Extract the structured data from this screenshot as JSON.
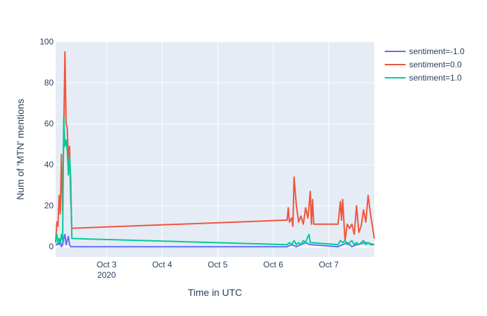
{
  "chart_data": {
    "type": "line",
    "xlabel": "Time in UTC",
    "ylabel": "Num of 'MTN' mentions",
    "x_axis": {
      "type": "date",
      "range": [
        "2020-10-02 02:00",
        "2020-10-07 19:40"
      ],
      "ticks": [
        {
          "date": "2020-10-03 00:00",
          "label": "Oct 3",
          "sublabel": "2020"
        },
        {
          "date": "2020-10-04 00:00",
          "label": "Oct 4",
          "sublabel": ""
        },
        {
          "date": "2020-10-05 00:00",
          "label": "Oct 5",
          "sublabel": ""
        },
        {
          "date": "2020-10-06 00:00",
          "label": "Oct 6",
          "sublabel": ""
        },
        {
          "date": "2020-10-07 00:00",
          "label": "Oct 7",
          "sublabel": ""
        }
      ]
    },
    "y_axis": {
      "range": [
        -5,
        100
      ],
      "ticks": [
        0,
        20,
        40,
        60,
        80,
        100
      ]
    },
    "grid": true,
    "legend_position": "top-right",
    "series": [
      {
        "name": "sentiment=-1.0",
        "color": "#636efa",
        "points": [
          [
            "2020-10-02 02:00",
            1
          ],
          [
            "2020-10-02 02:30",
            1
          ],
          [
            "2020-10-02 03:00",
            2
          ],
          [
            "2020-10-02 03:30",
            1
          ],
          [
            "2020-10-02 04:00",
            3
          ],
          [
            "2020-10-02 04:30",
            0
          ],
          [
            "2020-10-02 05:00",
            1
          ],
          [
            "2020-10-02 05:30",
            4
          ],
          [
            "2020-10-02 06:00",
            6
          ],
          [
            "2020-10-02 06:30",
            1
          ],
          [
            "2020-10-02 07:00",
            3
          ],
          [
            "2020-10-02 07:30",
            5
          ],
          [
            "2020-10-02 08:00",
            1
          ],
          [
            "2020-10-02 08:30",
            0
          ],
          [
            "2020-10-02 09:00",
            0
          ],
          [
            "2020-10-06 06:00",
            0
          ],
          [
            "2020-10-06 08:00",
            1
          ],
          [
            "2020-10-06 10:00",
            0
          ],
          [
            "2020-10-06 12:00",
            1
          ],
          [
            "2020-10-06 14:00",
            2
          ],
          [
            "2020-10-06 16:00",
            1
          ],
          [
            "2020-10-07 04:00",
            0
          ],
          [
            "2020-10-07 08:00",
            2
          ],
          [
            "2020-10-07 10:00",
            0
          ],
          [
            "2020-10-07 12:00",
            1
          ],
          [
            "2020-10-07 16:00",
            2
          ],
          [
            "2020-10-07 19:40",
            1
          ]
        ]
      },
      {
        "name": "sentiment=0.0",
        "color": "#ef553b",
        "points": [
          [
            "2020-10-02 02:00",
            2
          ],
          [
            "2020-10-02 02:30",
            12
          ],
          [
            "2020-10-02 03:00",
            10
          ],
          [
            "2020-10-02 03:30",
            25
          ],
          [
            "2020-10-02 04:00",
            16
          ],
          [
            "2020-10-02 04:30",
            45
          ],
          [
            "2020-10-02 05:00",
            18
          ],
          [
            "2020-10-02 05:30",
            55
          ],
          [
            "2020-10-02 06:00",
            95
          ],
          [
            "2020-10-02 06:30",
            60
          ],
          [
            "2020-10-02 07:00",
            58
          ],
          [
            "2020-10-02 07:30",
            42
          ],
          [
            "2020-10-02 08:00",
            49
          ],
          [
            "2020-10-02 08:30",
            24
          ],
          [
            "2020-10-02 09:00",
            9
          ],
          [
            "2020-10-06 06:00",
            13
          ],
          [
            "2020-10-06 06:30",
            19
          ],
          [
            "2020-10-06 07:00",
            12
          ],
          [
            "2020-10-06 08:00",
            14
          ],
          [
            "2020-10-06 08:30",
            10
          ],
          [
            "2020-10-06 09:00",
            34
          ],
          [
            "2020-10-06 10:00",
            20
          ],
          [
            "2020-10-06 11:00",
            12
          ],
          [
            "2020-10-06 12:00",
            15
          ],
          [
            "2020-10-06 13:00",
            11
          ],
          [
            "2020-10-06 14:00",
            19
          ],
          [
            "2020-10-06 15:00",
            14
          ],
          [
            "2020-10-06 16:00",
            27
          ],
          [
            "2020-10-06 16:30",
            11
          ],
          [
            "2020-10-06 17:00",
            23
          ],
          [
            "2020-10-06 17:30",
            11
          ],
          [
            "2020-10-07 04:00",
            11
          ],
          [
            "2020-10-07 05:00",
            22
          ],
          [
            "2020-10-07 05:30",
            13
          ],
          [
            "2020-10-07 06:00",
            23
          ],
          [
            "2020-10-07 07:00",
            3
          ],
          [
            "2020-10-07 08:00",
            11
          ],
          [
            "2020-10-07 09:00",
            9
          ],
          [
            "2020-10-07 10:00",
            11
          ],
          [
            "2020-10-07 11:00",
            6
          ],
          [
            "2020-10-07 12:00",
            20
          ],
          [
            "2020-10-07 13:00",
            7
          ],
          [
            "2020-10-07 14:00",
            10
          ],
          [
            "2020-10-07 15:00",
            18
          ],
          [
            "2020-10-07 16:00",
            12
          ],
          [
            "2020-10-07 17:00",
            25
          ],
          [
            "2020-10-07 18:00",
            16
          ],
          [
            "2020-10-07 19:40",
            4
          ]
        ]
      },
      {
        "name": "sentiment=1.0",
        "color": "#00cc96",
        "points": [
          [
            "2020-10-02 02:00",
            2
          ],
          [
            "2020-10-02 02:30",
            6
          ],
          [
            "2020-10-02 03:00",
            2
          ],
          [
            "2020-10-02 03:30",
            4
          ],
          [
            "2020-10-02 04:00",
            2
          ],
          [
            "2020-10-02 04:30",
            6
          ],
          [
            "2020-10-02 05:00",
            3
          ],
          [
            "2020-10-02 05:30",
            63
          ],
          [
            "2020-10-02 06:00",
            49
          ],
          [
            "2020-10-02 06:30",
            52
          ],
          [
            "2020-10-02 07:00",
            47
          ],
          [
            "2020-10-02 07:30",
            35
          ],
          [
            "2020-10-02 08:00",
            44
          ],
          [
            "2020-10-02 08:30",
            33
          ],
          [
            "2020-10-02 09:00",
            4
          ],
          [
            "2020-10-06 06:00",
            1
          ],
          [
            "2020-10-06 07:00",
            2
          ],
          [
            "2020-10-06 08:00",
            1
          ],
          [
            "2020-10-06 09:00",
            3
          ],
          [
            "2020-10-06 10:00",
            1
          ],
          [
            "2020-10-06 11:00",
            2
          ],
          [
            "2020-10-06 12:00",
            1
          ],
          [
            "2020-10-06 13:00",
            3
          ],
          [
            "2020-10-06 14:00",
            2
          ],
          [
            "2020-10-06 15:00",
            5
          ],
          [
            "2020-10-06 15:30",
            6
          ],
          [
            "2020-10-06 16:00",
            2
          ],
          [
            "2020-10-07 04:00",
            1
          ],
          [
            "2020-10-07 05:00",
            3
          ],
          [
            "2020-10-07 06:00",
            2
          ],
          [
            "2020-10-07 07:00",
            3
          ],
          [
            "2020-10-07 08:00",
            1
          ],
          [
            "2020-10-07 09:00",
            2
          ],
          [
            "2020-10-07 10:00",
            3
          ],
          [
            "2020-10-07 11:00",
            1
          ],
          [
            "2020-10-07 12:00",
            2
          ],
          [
            "2020-10-07 13:00",
            1
          ],
          [
            "2020-10-07 15:00",
            3
          ],
          [
            "2020-10-07 16:00",
            1
          ],
          [
            "2020-10-07 17:00",
            2
          ],
          [
            "2020-10-07 18:00",
            1
          ],
          [
            "2020-10-07 19:40",
            1
          ]
        ]
      }
    ]
  }
}
